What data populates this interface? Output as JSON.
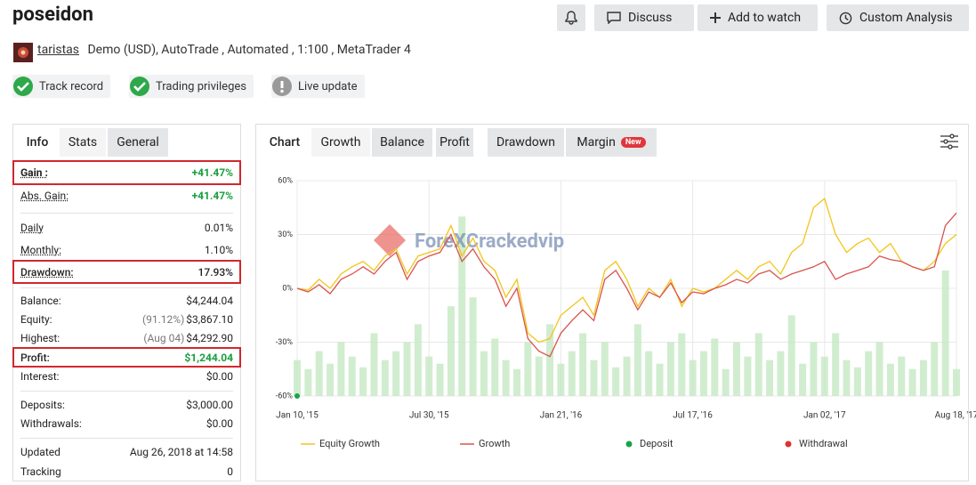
{
  "header": {
    "title": "poseidon",
    "buttons": [
      "Discuss",
      "Add to watch",
      "Custom Analysis"
    ],
    "user": "taristas",
    "account": "Demo (USD), AutoTrade , Automated , 1:100 , MetaTrader 4",
    "badges": [
      "Track record",
      "Trading privileges",
      "Live update"
    ]
  },
  "stats": {
    "tabs": [
      "Info",
      "Stats",
      "General"
    ],
    "groups": [
      [
        {
          "label": "Gain :",
          "value": "+41.47%",
          "highlight": true,
          "color": "#1a9e3f"
        },
        {
          "label": "Abs. Gain:",
          "value": "+41.47%",
          "color": "#1a9e3f"
        }
      ],
      [
        {
          "label": "Daily",
          "value": "0.01%"
        },
        {
          "label": "Monthly:",
          "value": "1.10%"
        },
        {
          "label": "Drawdown:",
          "value": "17.93%",
          "highlight": true
        }
      ],
      [
        {
          "label": "Balance:",
          "value": "$4,244.04"
        },
        {
          "label": "Equity:",
          "note": "(91.12%)",
          "value": "$3,867.10"
        },
        {
          "label": "Highest:",
          "note": "(Aug 04)",
          "value": "$4,292.90"
        },
        {
          "label": "Profit:",
          "value": "$1,244.04",
          "highlight": true,
          "color": "#1a9e3f"
        },
        {
          "label": "Interest:",
          "value": "$0.00"
        }
      ],
      [
        {
          "label": "Deposits:",
          "value": "$3,000.00"
        },
        {
          "label": "Withdrawals:",
          "value": "$0.00"
        }
      ],
      [
        {
          "label": "Updated",
          "value": "Aug 26, 2018 at 14:58"
        },
        {
          "label": "Tracking",
          "value": "0"
        }
      ]
    ]
  },
  "chart_tabs": {
    "items": [
      "Chart",
      "Growth",
      "Balance",
      "Profit",
      "Drawdown",
      "Margin"
    ],
    "badge": "New"
  },
  "chart_data": {
    "type": "line",
    "watermark": "ForeXCrackedvip",
    "categories": [
      "Jan 10, '15",
      null,
      null,
      null,
      null,
      null,
      null,
      null,
      null,
      null,
      null,
      null,
      "Jul 30, '15",
      null,
      null,
      null,
      null,
      null,
      null,
      null,
      null,
      null,
      null,
      null,
      "Jan 21, '16",
      null,
      null,
      null,
      null,
      null,
      null,
      null,
      null,
      null,
      null,
      null,
      "Jul 17, '16",
      null,
      null,
      null,
      null,
      null,
      null,
      null,
      null,
      null,
      null,
      null,
      "Jan 02, '17",
      null,
      null,
      null,
      null,
      null,
      null,
      null,
      null,
      null,
      null,
      null,
      "Aug 18, '17"
    ],
    "ylim": [
      -60,
      60
    ],
    "yticks": [
      {
        "value": -60,
        "label": "-60%"
      },
      {
        "value": -30,
        "label": "-30%"
      },
      {
        "value": 0,
        "label": "0%"
      },
      {
        "value": 30,
        "label": "30%"
      },
      {
        "value": 60,
        "label": "60%"
      }
    ],
    "grid": true,
    "bars": {
      "color": "#c6e8c3",
      "values": [
        -40,
        -45,
        -35,
        -42,
        -30,
        -38,
        -44,
        -25,
        -40,
        -35,
        -30,
        -20,
        -38,
        -42,
        -10,
        40,
        -5,
        -35,
        -28,
        -40,
        -45,
        -30,
        -38,
        -20,
        -42,
        -35,
        -25,
        -40,
        -30,
        -44,
        -38,
        -20,
        -35,
        -42,
        -30,
        -25,
        -40,
        -35,
        -28,
        -45,
        -30,
        -38,
        -25,
        -40,
        -35,
        -15,
        -42,
        -30,
        -38,
        -25,
        -40,
        -44,
        -35,
        -30,
        -42,
        -38,
        -45,
        -40,
        -30,
        10,
        -45
      ]
    },
    "series": [
      {
        "name": "Equity Growth",
        "color": "#f2c519",
        "kind": "line",
        "values": [
          0,
          -1,
          5,
          0,
          8,
          12,
          15,
          10,
          18,
          22,
          8,
          18,
          20,
          22,
          35,
          18,
          28,
          15,
          10,
          -5,
          5,
          -25,
          -30,
          -28,
          -15,
          -10,
          -5,
          -15,
          10,
          15,
          5,
          -10,
          0,
          -5,
          5,
          -10,
          0,
          -2,
          0,
          5,
          10,
          5,
          12,
          15,
          8,
          20,
          25,
          45,
          50,
          30,
          20,
          25,
          28,
          20,
          25,
          15,
          12,
          10,
          15,
          25,
          30
        ]
      },
      {
        "name": "Growth",
        "color": "#d9534f",
        "kind": "line",
        "values": [
          0,
          -2,
          2,
          -3,
          5,
          8,
          12,
          8,
          15,
          20,
          5,
          15,
          18,
          20,
          30,
          15,
          22,
          12,
          5,
          -10,
          0,
          -28,
          -35,
          -38,
          -25,
          -18,
          -12,
          -18,
          5,
          10,
          0,
          -12,
          -2,
          -5,
          3,
          -8,
          -2,
          -3,
          0,
          2,
          5,
          3,
          8,
          10,
          5,
          8,
          10,
          12,
          15,
          5,
          8,
          10,
          12,
          18,
          16,
          15,
          12,
          10,
          12,
          35,
          42
        ]
      },
      {
        "name": "Deposit",
        "color": "#1aa34a",
        "kind": "dot",
        "values": [
          -60,
          null,
          null,
          null,
          null,
          null,
          null,
          null,
          null,
          null,
          null,
          null,
          null,
          null,
          null,
          null,
          null,
          null,
          null,
          null,
          null,
          null,
          null,
          null,
          null,
          null,
          null,
          null,
          null,
          null,
          null,
          null,
          null,
          null,
          null,
          null,
          null,
          null,
          null,
          null,
          null,
          null,
          null,
          null,
          null,
          null,
          null,
          null,
          null,
          null,
          null,
          null,
          null,
          null,
          null,
          null,
          null,
          null,
          null,
          null,
          null
        ]
      },
      {
        "name": "Withdrawal",
        "color": "#e03030",
        "kind": "dot",
        "values": [
          null,
          null,
          null,
          null,
          null,
          null,
          null,
          null,
          null,
          null,
          null,
          null,
          null,
          null,
          null,
          null,
          null,
          null,
          null,
          null,
          null,
          null,
          null,
          null,
          null,
          null,
          null,
          null,
          null,
          null,
          null,
          null,
          null,
          null,
          null,
          null,
          null,
          null,
          null,
          null,
          null,
          null,
          null,
          null,
          null,
          null,
          null,
          null,
          null,
          null,
          null,
          null,
          null,
          null,
          null,
          null,
          null,
          null,
          null,
          null,
          null
        ]
      }
    ]
  }
}
